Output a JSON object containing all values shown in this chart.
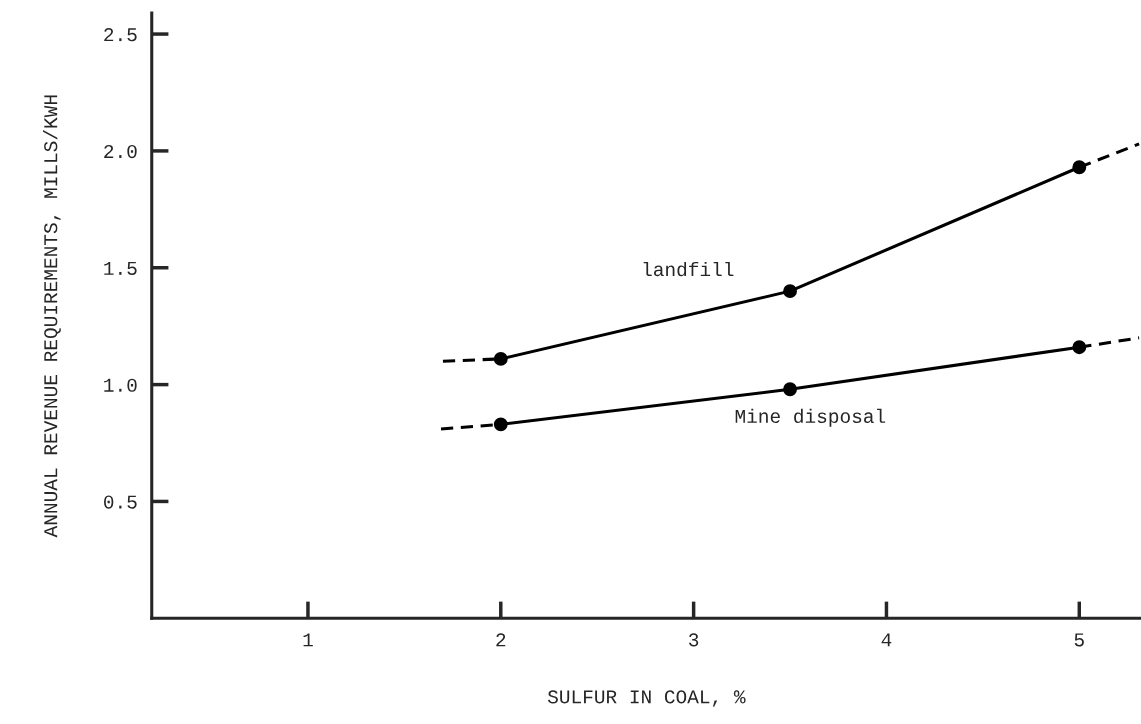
{
  "chart_data": {
    "type": "line",
    "xlabel": "SULFUR IN COAL, %",
    "ylabel": "ANNUAL REVENUE REQUIREMENTS, MILLS/KWH",
    "xlim": [
      0.19,
      5.32
    ],
    "xticks": [
      1,
      2,
      3,
      4,
      5
    ],
    "ylim": [
      0,
      2.59
    ],
    "yticks": [
      0.5,
      {
        "value": 1,
        "label": "1.0"
      },
      1.5,
      {
        "value": 2,
        "label": "2.0"
      },
      2.5
    ],
    "grid": false,
    "legend": false,
    "series": [
      {
        "name": "landfill",
        "color": "#000000",
        "marker": "circle",
        "line_style": "solid",
        "x": [
          2,
          3.5,
          5
        ],
        "values": [
          1.11,
          1.4,
          1.93
        ]
      },
      {
        "name": "Mine disposal",
        "color": "#000000",
        "marker": "circle",
        "line_style": "solid",
        "x": [
          2,
          3.5,
          5
        ],
        "values": [
          0.83,
          0.98,
          1.16
        ]
      },
      {
        "type": "line",
        "color": "#000000",
        "marker": "none",
        "line_style": "dashed",
        "x": [
          1.7,
          2
        ],
        "values": [
          1.1,
          1.11
        ]
      },
      {
        "type": "line",
        "color": "#000000",
        "marker": "none",
        "line_style": "dashed",
        "x": [
          5,
          5.31
        ],
        "values": [
          1.93,
          2.03
        ]
      },
      {
        "type": "line",
        "color": "#000000",
        "marker": "none",
        "line_style": "dashed",
        "x": [
          1.69,
          2
        ],
        "values": [
          0.81,
          0.83
        ]
      },
      {
        "type": "line",
        "color": "#000000",
        "marker": "none",
        "line_style": "dashed",
        "x": [
          5,
          5.31
        ],
        "values": [
          1.16,
          1.2
        ]
      }
    ]
  }
}
